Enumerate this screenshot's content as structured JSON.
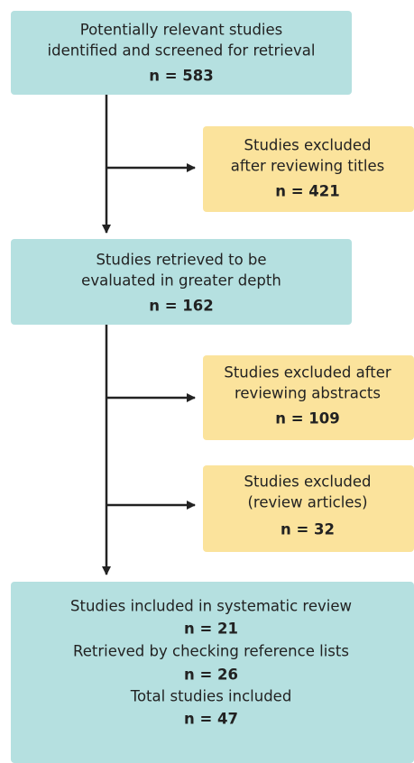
{
  "nodes": [
    {
      "text": [
        "Potentially relevant studies",
        "identified and screened for retrieval"
      ],
      "count": "n = 583"
    },
    {
      "text": [
        "Studies excluded",
        "after reviewing titles"
      ],
      "count": "n = 421"
    },
    {
      "text": [
        "Studies retrieved to be",
        "evaluated in greater depth"
      ],
      "count": "n = 162"
    },
    {
      "text": [
        "Studies excluded after",
        "reviewing abstracts"
      ],
      "count": "n = 109"
    },
    {
      "text": [
        "Studies excluded",
        "(review articles)"
      ],
      "count": "n = 32"
    },
    {
      "sections": [
        {
          "text": "Studies included in systematic review",
          "count": "n = 21"
        },
        {
          "text": "Retrieved by checking reference lists",
          "count": "n = 26"
        },
        {
          "text": "Total studies included",
          "count": "n = 47"
        }
      ]
    }
  ]
}
